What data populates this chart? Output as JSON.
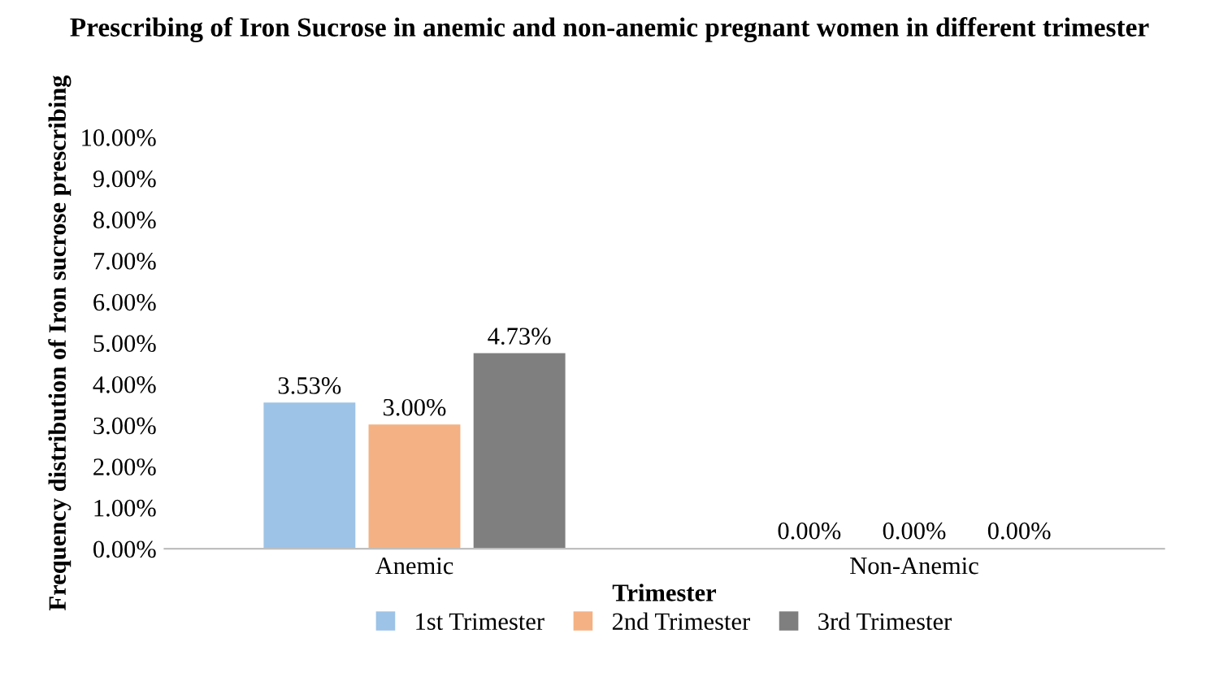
{
  "chart_data": {
    "type": "bar",
    "title": "Prescribing of Iron Sucrose in anemic and non-anemic pregnant women in different trimester",
    "xlabel": "Trimester",
    "ylabel": "Frequency distribution of Iron sucrose prescribing",
    "categories": [
      "Anemic",
      "Non-Anemic"
    ],
    "series": [
      {
        "name": "1st Trimester",
        "color": "#9dc3e6",
        "values": [
          3.53,
          0.0
        ],
        "value_labels": [
          "3.53%",
          "0.00%"
        ]
      },
      {
        "name": "2nd Trimester",
        "color": "#f4b183",
        "values": [
          3.0,
          0.0
        ],
        "value_labels": [
          "3.00%",
          "0.00%"
        ]
      },
      {
        "name": "3rd Trimester",
        "color": "#7f7f7f",
        "values": [
          4.73,
          0.0
        ],
        "value_labels": [
          "4.73%",
          "0.00%"
        ]
      }
    ],
    "ylim": [
      0,
      10
    ],
    "yticks": [
      {
        "value": 0,
        "label": "0.00%"
      },
      {
        "value": 1,
        "label": "1.00%"
      },
      {
        "value": 2,
        "label": "2.00%"
      },
      {
        "value": 3,
        "label": "3.00%"
      },
      {
        "value": 4,
        "label": "4.00%"
      },
      {
        "value": 5,
        "label": "5.00%"
      },
      {
        "value": 6,
        "label": "6.00%"
      },
      {
        "value": 7,
        "label": "7.00%"
      },
      {
        "value": 8,
        "label": "8.00%"
      },
      {
        "value": 9,
        "label": "9.00%"
      },
      {
        "value": 10,
        "label": "10.00%"
      }
    ],
    "grid": false,
    "legend": "bottom"
  }
}
